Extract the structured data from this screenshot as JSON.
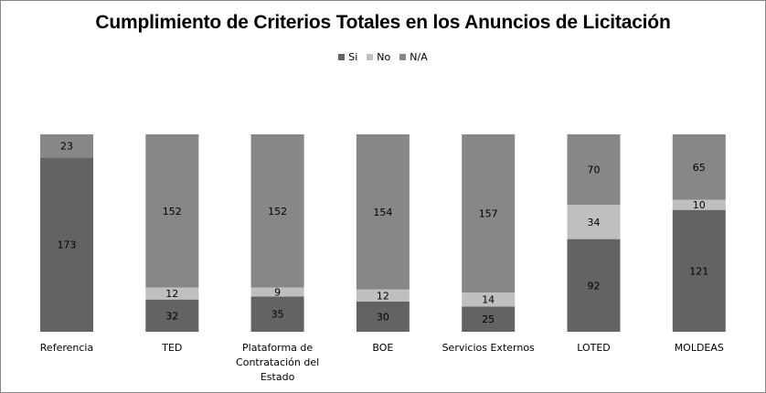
{
  "chart_data": {
    "type": "bar",
    "stacked": true,
    "title": "Cumplimiento de Criterios Totales en los Anuncios de Licitación",
    "legend_position": "top",
    "categories": [
      "Referencia",
      "TED",
      "Plataforma de Contratación del Estado",
      "BOE",
      "Servicios Externos",
      "LOTED",
      "MOLDEAS"
    ],
    "category_label_lines": [
      [
        "Referencia"
      ],
      [
        "TED"
      ],
      [
        "Plataforma de",
        "Contratación del",
        "Estado"
      ],
      [
        "BOE"
      ],
      [
        "Servicios Externos"
      ],
      [
        "LOTED"
      ],
      [
        "MOLDEAS"
      ]
    ],
    "series": [
      {
        "name": "Si",
        "color": "#636363",
        "values": [
          173,
          32,
          35,
          30,
          25,
          92,
          121
        ]
      },
      {
        "name": "No",
        "color": "#bfbfbf",
        "values": [
          null,
          12,
          9,
          12,
          14,
          34,
          10
        ]
      },
      {
        "name": "N/A",
        "color": "#878787",
        "values": [
          23,
          152,
          152,
          154,
          157,
          70,
          65
        ]
      }
    ],
    "normalized_100_percent": true,
    "grid": false
  }
}
